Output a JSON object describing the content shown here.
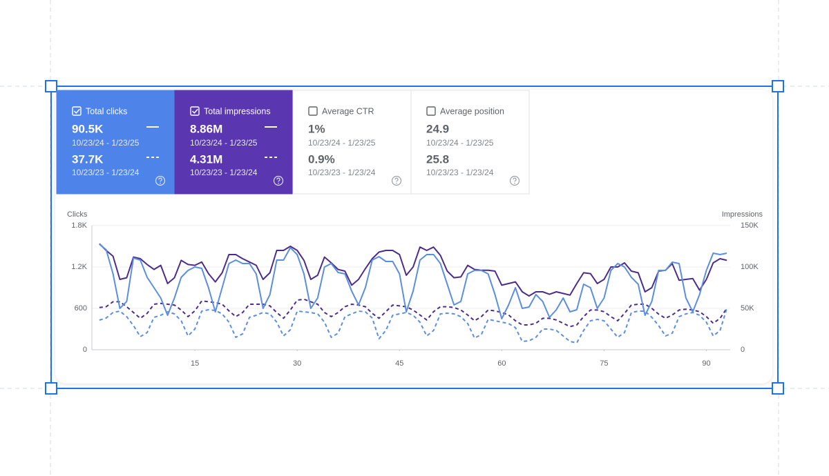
{
  "cards": [
    {
      "title": "Total clicks",
      "selected": true,
      "color": "#4e84ea",
      "current": {
        "value": "90.5K",
        "range": "10/23/24 - 1/23/25"
      },
      "previous": {
        "value": "37.7K",
        "range": "10/23/23 - 1/23/24"
      }
    },
    {
      "title": "Total impressions",
      "selected": true,
      "color": "#5a37b0",
      "current": {
        "value": "8.86M",
        "range": "10/23/24 - 1/23/25"
      },
      "previous": {
        "value": "4.31M",
        "range": "10/23/23 - 1/23/24"
      }
    },
    {
      "title": "Average CTR",
      "selected": false,
      "color": "#ffffff",
      "current": {
        "value": "1%",
        "range": "10/23/24 - 1/23/25"
      },
      "previous": {
        "value": "0.9%",
        "range": "10/23/23 - 1/23/24"
      }
    },
    {
      "title": "Average position",
      "selected": false,
      "color": "#ffffff",
      "current": {
        "value": "24.9",
        "range": "10/23/24 - 1/23/25"
      },
      "previous": {
        "value": "25.8",
        "range": "10/23/23 - 1/23/24"
      }
    }
  ],
  "chart_data": {
    "type": "line",
    "y_label": "Clicks",
    "y2_label": "Impressions",
    "x": [
      1,
      2,
      3,
      4,
      5,
      6,
      7,
      8,
      9,
      10,
      11,
      12,
      13,
      14,
      15,
      16,
      17,
      18,
      19,
      20,
      21,
      22,
      23,
      24,
      25,
      26,
      27,
      28,
      29,
      30,
      31,
      32,
      33,
      34,
      35,
      36,
      37,
      38,
      39,
      40,
      41,
      42,
      43,
      44,
      45,
      46,
      47,
      48,
      49,
      50,
      51,
      52,
      53,
      54,
      55,
      56,
      57,
      58,
      59,
      60,
      61,
      62,
      63,
      64,
      65,
      66,
      67,
      68,
      69,
      70,
      71,
      72,
      73,
      74,
      75,
      76,
      77,
      78,
      79,
      80,
      81,
      82,
      83,
      84,
      85,
      86,
      87,
      88,
      89,
      90,
      91,
      92,
      93
    ],
    "xlim": [
      0,
      94
    ],
    "xticks": [
      15,
      30,
      45,
      60,
      75,
      90
    ],
    "ylim": [
      0,
      1800
    ],
    "yticks": [
      0,
      600,
      {
        "value": 1200,
        "label": "1.2K"
      },
      {
        "value": 1800,
        "label": "1.8K"
      }
    ],
    "y2lim": [
      0,
      150000
    ],
    "y2ticks": [
      0,
      {
        "value": 50000,
        "label": "50K"
      },
      {
        "value": 100000,
        "label": "100K"
      },
      {
        "value": 150000,
        "label": "150K"
      }
    ],
    "grid": true,
    "series": [
      {
        "color": "#5b8ee0",
        "dash": false,
        "values": [
          1530,
          1450,
          1100,
          600,
          700,
          1330,
          1300,
          1050,
          900,
          750,
          500,
          750,
          1050,
          1150,
          1200,
          1180,
          900,
          550,
          900,
          1250,
          1300,
          1250,
          1250,
          1100,
          600,
          800,
          1300,
          1300,
          1480,
          1380,
          1100,
          600,
          750,
          1200,
          1250,
          1120,
          1100,
          850,
          650,
          900,
          1300,
          1350,
          1280,
          1280,
          1100,
          550,
          850,
          1300,
          1380,
          1380,
          1250,
          950,
          650,
          700,
          1100,
          1150,
          1150,
          1100,
          800,
          450,
          650,
          900,
          600,
          620,
          800,
          700,
          470,
          580,
          750,
          550,
          580,
          950,
          900,
          600,
          750,
          1150,
          1250,
          1200,
          1050,
          950,
          500,
          700,
          1150,
          1150,
          1270,
          1250,
          750,
          550,
          800,
          1150,
          1400,
          1380,
          1400
        ]
      },
      {
        "color": "#5b8ee0",
        "dash": true,
        "values": [
          430,
          460,
          540,
          560,
          480,
          350,
          190,
          250,
          470,
          500,
          550,
          520,
          420,
          200,
          300,
          560,
          580,
          570,
          520,
          400,
          180,
          230,
          470,
          500,
          540,
          520,
          400,
          200,
          290,
          560,
          550,
          540,
          520,
          400,
          180,
          240,
          480,
          520,
          560,
          550,
          460,
          160,
          280,
          500,
          520,
          540,
          500,
          400,
          200,
          280,
          520,
          530,
          520,
          480,
          380,
          170,
          220,
          440,
          420,
          400,
          380,
          320,
          120,
          130,
          180,
          300,
          300,
          280,
          200,
          120,
          100,
          280,
          420,
          440,
          420,
          300,
          180,
          250,
          540,
          560,
          560,
          470,
          350,
          200,
          240,
          480,
          520,
          540,
          500,
          400,
          200,
          280,
          600
        ]
      },
      {
        "color": "#4b2c8c",
        "dash": false,
        "axis": "y2",
        "values": [
          128000,
          120000,
          113000,
          85000,
          87000,
          112000,
          110000,
          103000,
          97000,
          102000,
          80000,
          87000,
          108000,
          103000,
          102000,
          106000,
          92000,
          82000,
          93000,
          115000,
          115000,
          110000,
          106000,
          102000,
          85000,
          93000,
          120000,
          120000,
          125000,
          120000,
          108000,
          85000,
          90000,
          112000,
          105000,
          97000,
          95000,
          78000,
          85000,
          98000,
          110000,
          118000,
          120000,
          120000,
          115000,
          90000,
          100000,
          124000,
          120000,
          124000,
          114000,
          95000,
          87000,
          88000,
          102000,
          97000,
          96000,
          96000,
          95000,
          78000,
          80000,
          82000,
          70000,
          65000,
          70000,
          70000,
          67000,
          70000,
          68000,
          66000,
          80000,
          93000,
          92000,
          80000,
          85000,
          100000,
          100000,
          105000,
          95000,
          93000,
          70000,
          75000,
          95000,
          96000,
          104000,
          84000,
          85000,
          86000,
          72000,
          85000,
          105000,
          110000,
          108000
        ]
      },
      {
        "color": "#4b2c8c",
        "dash": true,
        "axis": "y2",
        "values": [
          51000,
          52000,
          58000,
          58000,
          52000,
          45000,
          38000,
          44000,
          55000,
          56000,
          55000,
          54000,
          48000,
          40000,
          47000,
          59000,
          58000,
          57000,
          55000,
          47000,
          40000,
          45000,
          55000,
          55000,
          55000,
          53000,
          45000,
          38000,
          48000,
          60000,
          61000,
          58000,
          55000,
          45000,
          40000,
          45000,
          52000,
          55000,
          54000,
          52000,
          44000,
          38000,
          46000,
          54000,
          53000,
          52000,
          48000,
          42000,
          36000,
          46000,
          52000,
          52000,
          51000,
          48000,
          42000,
          35000,
          40000,
          48000,
          47000,
          45000,
          42000,
          35000,
          30000,
          30000,
          32000,
          38000,
          38000,
          36000,
          32000,
          28000,
          30000,
          40000,
          48000,
          48000,
          46000,
          40000,
          35000,
          44000,
          54000,
          55000,
          55000,
          50000,
          43000,
          38000,
          42000,
          48000,
          49000,
          48000,
          46000,
          40000,
          32000,
          38000,
          50000
        ]
      }
    ]
  }
}
